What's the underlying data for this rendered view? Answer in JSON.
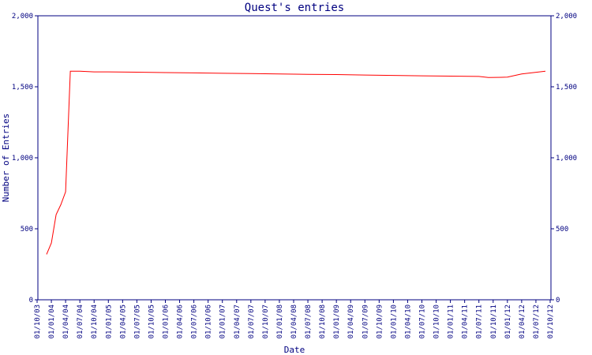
{
  "chart_data": {
    "type": "line",
    "title": "Quest's entries",
    "xlabel": "Date",
    "ylabel": "Number of Entries",
    "ylim": [
      0,
      2000
    ],
    "y_ticks": [
      0,
      500,
      1000,
      1500,
      2000
    ],
    "y_tick_labels": [
      "0",
      "500",
      "1,000",
      "1,500",
      "2,000"
    ],
    "x_tick_labels": [
      "01/10/03",
      "01/01/04",
      "01/04/04",
      "01/07/04",
      "01/10/04",
      "01/01/05",
      "01/04/05",
      "01/07/05",
      "01/10/05",
      "01/01/06",
      "01/04/06",
      "01/07/06",
      "01/10/06",
      "01/01/07",
      "01/04/07",
      "01/07/07",
      "01/10/07",
      "01/01/08",
      "01/04/08",
      "01/07/08",
      "01/10/08",
      "01/01/09",
      "01/04/09",
      "01/07/09",
      "01/10/09",
      "01/01/10",
      "01/04/10",
      "01/07/10",
      "01/10/10",
      "01/01/11",
      "01/04/11",
      "01/07/11",
      "01/10/11",
      "01/01/12",
      "01/04/12",
      "01/07/12",
      "01/10/12"
    ],
    "grid": false,
    "axis_color": "#000080",
    "series": [
      {
        "color": "#ff0000",
        "x": [
          "01/12/03",
          "01/01/04",
          "01/02/04",
          "01/03/04",
          "01/04/04",
          "01/05/04",
          "01/07/04",
          "01/10/04",
          "01/01/05",
          "01/07/05",
          "01/01/06",
          "01/07/06",
          "01/01/07",
          "01/07/07",
          "01/01/08",
          "01/07/08",
          "01/01/09",
          "01/07/09",
          "01/01/10",
          "01/07/10",
          "01/01/11",
          "01/07/11",
          "01/09/11",
          "01/01/12",
          "01/04/12",
          "01/09/12"
        ],
        "values": [
          320,
          400,
          600,
          670,
          760,
          1610,
          1610,
          1605,
          1605,
          1603,
          1600,
          1598,
          1595,
          1593,
          1590,
          1588,
          1586,
          1583,
          1580,
          1577,
          1575,
          1573,
          1565,
          1568,
          1590,
          1610
        ]
      }
    ]
  }
}
